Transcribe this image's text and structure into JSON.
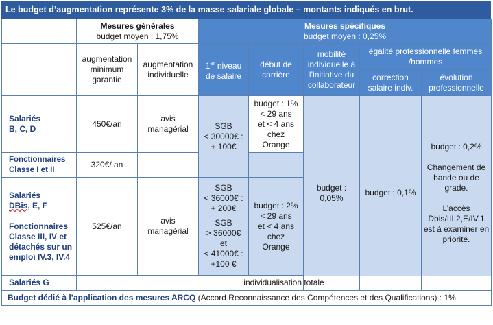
{
  "title": "Le budget d’augmentation représente 3% de la masse salariale globale – montants indiqués en brut.",
  "headers": {
    "generales_title": "Mesures générales",
    "generales_budget": "budget moyen : 1,75%",
    "specifiques_title": "Mesures spécifiques",
    "specifiques_budget": "budget moyen : 0,25%",
    "aug_min_garantie": "augmentation minimum garantie",
    "aug_individuelle": "augmentation individuelle",
    "niveau_salaire_num": "1",
    "niveau_salaire_sup": "er",
    "niveau_salaire_rest": " niveau de salaire",
    "debut_carriere": "début de carrière",
    "mobilite": "mobilité individuelle à l’initiative du collaborateur",
    "egalite": "égalité professionnelle femmes /hommes",
    "correction": "correction salaire indiv.",
    "evolution": "évolution professionnelle"
  },
  "rows": {
    "bcd_label": "Salariés\nB, C, D",
    "bcd_min": "450€/an",
    "bcd_indiv": "avis managérial",
    "niveau_1": "SGB\n< 30000€ :\n+ 100€",
    "debut_1": "budget : 1%\n< 29 ans\net < 4 ans\nchez\nOrange",
    "fonct_label": "Fonctionnaires\nClasse I et II",
    "fonct_min": "320€/ an",
    "dbisef_label_1": "Salariés",
    "dbisef_label_dbis": "DBis",
    "dbisef_label_rest": ", E, F",
    "fonct3_label": "Fonctionnaires\nClasse III, IV et détachés sur un emploi IV.3, IV.4",
    "dbisef_min": "525€/an",
    "dbisef_indiv": "avis managérial",
    "niveau_2a": "SGB\n< 36000€ :\n+ 200€",
    "niveau_2b": "SGB\n> 36000€\net\n< 41000€ :\n+100 €",
    "debut_2": "budget : 2%\n< 29 ans\net < 4 ans\nchez\nOrange",
    "mobilite_budget": "budget :\n0,05%",
    "correction_budget": "budget : 0,1%",
    "evolution_budget": "budget : 0,2%",
    "evolution_text1": "Changement de bande ou de grade.",
    "evolution_text2": "L’accès Dbis/III.2,E/IV.1 est à examiner en priorité.",
    "g_label": "Salariés G",
    "g_text": "individualisation totale"
  },
  "footer": {
    "bold": "Budget dédié à l’application des mesures ARCQ",
    "normal": " (Accord Reconnaissance des Compétences et des Qualifications) : 1%"
  }
}
